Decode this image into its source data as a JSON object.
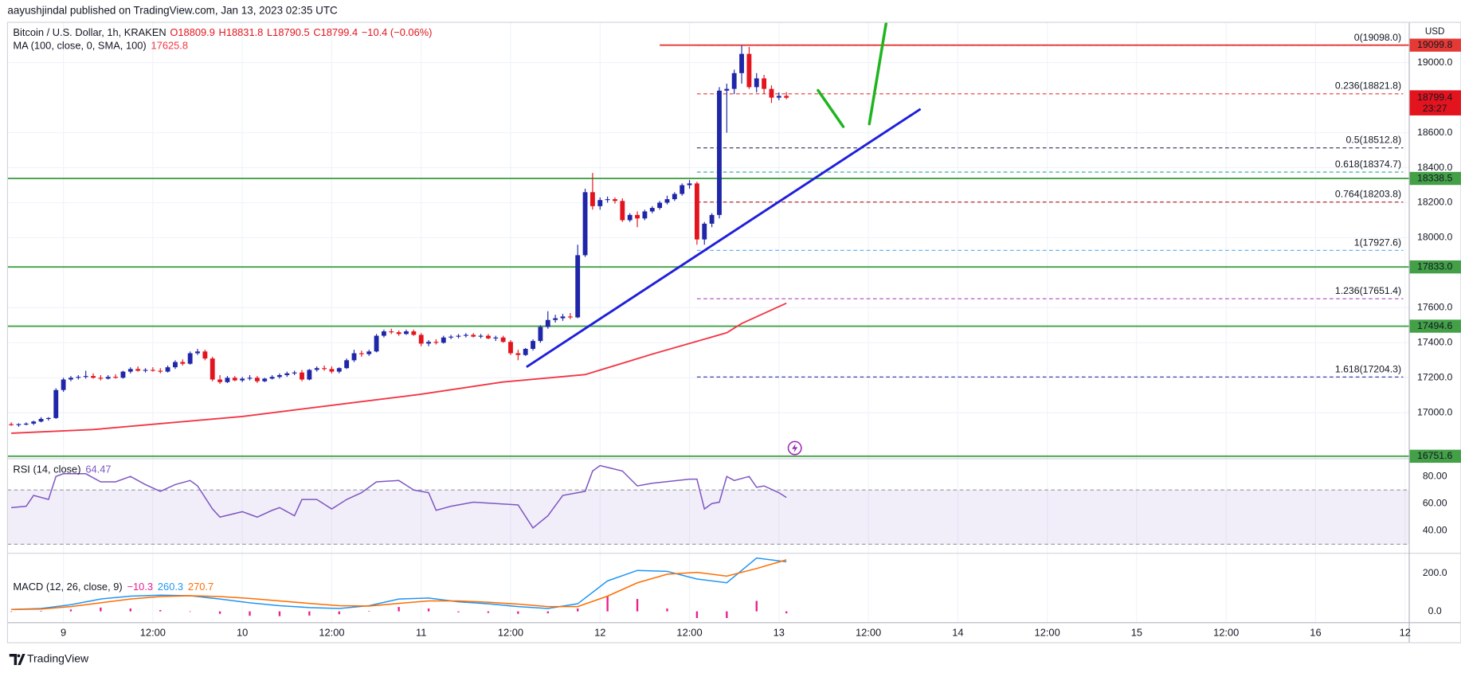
{
  "header": {
    "published": "aayushjindal published on TradingView.com, Jan 13, 2023 02:35 UTC"
  },
  "footer": {
    "brand": "TradingView"
  },
  "chart_data": [
    {
      "type": "candlestick",
      "title": "Bitcoin / U.S. Dollar, 1h, KRAKEN",
      "ohlc_labels": [
        "O18809.9",
        "H18831.8",
        "L18790.5",
        "C18799.4"
      ],
      "change_label": "−10.4 (−0.06%)",
      "currency": "USD",
      "countdown": "23:27",
      "up_color": "#1f26a8",
      "down_color": "#e3141e",
      "open": [
        16935,
        16930,
        16935,
        16938,
        16950,
        16965,
        16970,
        17130,
        17190,
        17200,
        17205,
        17210,
        17200,
        17195,
        17205,
        17200,
        17235,
        17250,
        17240,
        17245,
        17240,
        17235,
        17260,
        17290,
        17280,
        17340,
        17350,
        17310,
        17190,
        17175,
        17200,
        17185,
        17195,
        17200,
        17180,
        17195,
        17205,
        17215,
        17225,
        17230,
        17190,
        17245,
        17255,
        17250,
        17235,
        17255,
        17300,
        17340,
        17335,
        17350,
        17440,
        17465,
        17460,
        17450,
        17465,
        17445,
        17395,
        17405,
        17400,
        17430,
        17435,
        17440,
        17445,
        17435,
        17440,
        17425,
        17430,
        17405,
        17340,
        17330,
        17365,
        17410,
        17490,
        17530,
        17540,
        17550,
        17545,
        17900,
        18260,
        18180,
        18215,
        18220,
        18210,
        18100,
        18130,
        18110,
        18150,
        18170,
        18200,
        18220,
        18250,
        18300,
        18310,
        17990,
        18080,
        18130,
        18840,
        18850,
        18940,
        19050,
        18860,
        18910,
        18850,
        18800,
        18809.9
      ],
      "high": [
        16945,
        16940,
        16945,
        16955,
        16975,
        16975,
        17140,
        17200,
        17210,
        17215,
        17240,
        17225,
        17215,
        17215,
        17220,
        17240,
        17260,
        17265,
        17255,
        17260,
        17255,
        17270,
        17300,
        17305,
        17350,
        17365,
        17360,
        17320,
        17215,
        17210,
        17210,
        17205,
        17215,
        17210,
        17200,
        17215,
        17225,
        17235,
        17240,
        17245,
        17250,
        17265,
        17270,
        17265,
        17260,
        17310,
        17360,
        17355,
        17360,
        17450,
        17475,
        17480,
        17470,
        17475,
        17475,
        17455,
        17415,
        17420,
        17440,
        17445,
        17450,
        17455,
        17455,
        17450,
        17450,
        17440,
        17440,
        17415,
        17360,
        17370,
        17420,
        17500,
        17580,
        17560,
        17565,
        17570,
        17960,
        18280,
        18370,
        18230,
        18235,
        18230,
        18225,
        18140,
        18150,
        18160,
        18180,
        18210,
        18240,
        18260,
        18310,
        18330,
        18320,
        18090,
        18140,
        18860,
        18880,
        18960,
        19098,
        19090,
        18940,
        18930,
        18870,
        18830,
        18831.8
      ],
      "low": [
        16925,
        16920,
        16928,
        16930,
        16945,
        16955,
        16965,
        17120,
        17180,
        17190,
        17195,
        17195,
        17185,
        17190,
        17195,
        17195,
        17225,
        17235,
        17230,
        17235,
        17225,
        17230,
        17250,
        17270,
        17275,
        17330,
        17300,
        17180,
        17165,
        17170,
        17180,
        17175,
        17185,
        17170,
        17175,
        17190,
        17195,
        17205,
        17215,
        17180,
        17185,
        17235,
        17240,
        17225,
        17225,
        17250,
        17290,
        17320,
        17325,
        17345,
        17430,
        17450,
        17440,
        17445,
        17440,
        17380,
        17380,
        17390,
        17395,
        17420,
        17425,
        17430,
        17430,
        17425,
        17420,
        17410,
        17400,
        17330,
        17300,
        17325,
        17355,
        17400,
        17480,
        17515,
        17525,
        17535,
        17540,
        17890,
        18160,
        18160,
        18200,
        18195,
        18090,
        18090,
        18060,
        18100,
        18140,
        18160,
        18190,
        18210,
        18240,
        18280,
        17960,
        17960,
        18060,
        18110,
        18600,
        18820,
        18880,
        18850,
        18830,
        18820,
        18770,
        18785,
        18790.5
      ],
      "close": [
        16930,
        16935,
        16938,
        16950,
        16965,
        16970,
        17130,
        17190,
        17200,
        17205,
        17210,
        17200,
        17195,
        17205,
        17200,
        17235,
        17250,
        17240,
        17245,
        17240,
        17235,
        17260,
        17290,
        17280,
        17340,
        17350,
        17310,
        17190,
        17175,
        17200,
        17185,
        17195,
        17200,
        17180,
        17195,
        17205,
        17215,
        17225,
        17230,
        17190,
        17245,
        17255,
        17250,
        17235,
        17255,
        17300,
        17340,
        17335,
        17350,
        17440,
        17465,
        17460,
        17450,
        17465,
        17445,
        17395,
        17405,
        17400,
        17430,
        17435,
        17440,
        17445,
        17435,
        17440,
        17425,
        17430,
        17405,
        17340,
        17330,
        17365,
        17410,
        17490,
        17530,
        17540,
        17550,
        17545,
        17900,
        18260,
        18180,
        18215,
        18220,
        18210,
        18100,
        18130,
        18110,
        18150,
        18170,
        18200,
        18220,
        18250,
        18300,
        18310,
        17990,
        18080,
        18130,
        18840,
        18850,
        18940,
        19050,
        18860,
        18910,
        18850,
        18800,
        18810,
        18799.4
      ],
      "series": [
        {
          "name": "MA (100, close, 0, SMA, 100)",
          "color": "#f23645",
          "x": [
            0,
            11,
            31,
            45,
            55,
            66,
            77,
            86,
            96,
            98,
            104
          ],
          "values": [
            16883,
            16904,
            16979,
            17053,
            17106,
            17176,
            17218,
            17335,
            17457,
            17510,
            17625.8
          ]
        }
      ],
      "levels": [
        {
          "value": 18338.5,
          "label": "18338.5",
          "color": "#43a047"
        },
        {
          "value": 17833.0,
          "label": "17833.0",
          "color": "#43a047"
        },
        {
          "value": 17494.6,
          "label": "17494.6",
          "color": "#43a047"
        },
        {
          "value": 16751.6,
          "label": "16751.6",
          "color": "#43a047"
        },
        {
          "value": 19099.8,
          "label": "19099.8",
          "color": "#e53935"
        }
      ],
      "fib": [
        {
          "value": 19098.0,
          "label": "0(19098.0)",
          "color": "#787b86"
        },
        {
          "value": 18821.8,
          "label": "0.236(18821.8)",
          "color": "#e53935"
        },
        {
          "value": 18512.8,
          "label": "0.5(18512.8)",
          "color": "#2a2e5c"
        },
        {
          "value": 18374.7,
          "label": "0.618(18374.7)",
          "color": "#26a69a"
        },
        {
          "value": 18203.8,
          "label": "0.764(18203.8)",
          "color": "#b71c1c"
        },
        {
          "value": 17927.6,
          "label": "1(17927.6)",
          "color": "#64b5f6"
        },
        {
          "value": 17651.4,
          "label": "1.236(17651.4)",
          "color": "#ab47bc"
        },
        {
          "value": 17204.3,
          "label": "1.618(17204.3)",
          "color": "#3949ab"
        }
      ],
      "xlim": [
        -0.5,
        187.5
      ],
      "xticks": [
        {
          "value": 7,
          "label": "9"
        },
        {
          "value": 19,
          "label": "12:00"
        },
        {
          "value": 31,
          "label": "10"
        },
        {
          "value": 43,
          "label": "12:00"
        },
        {
          "value": 55,
          "label": "11"
        },
        {
          "value": 67,
          "label": "12:00"
        },
        {
          "value": 79,
          "label": "12"
        },
        {
          "value": 91,
          "label": "12:00"
        },
        {
          "value": 103,
          "label": "13"
        },
        {
          "value": 115,
          "label": "12:00"
        },
        {
          "value": 127,
          "label": "14"
        },
        {
          "value": 139,
          "label": "12:00"
        },
        {
          "value": 151,
          "label": "15"
        },
        {
          "value": 163,
          "label": "12:00"
        },
        {
          "value": 175,
          "label": "16"
        },
        {
          "value": 187,
          "label": "12"
        }
      ],
      "ylim": [
        16740,
        19230
      ],
      "yticks": [
        {
          "value": 19000,
          "label": "19000.0"
        },
        {
          "value": 18600,
          "label": "18600.0"
        },
        {
          "value": 18400,
          "label": "18400.0"
        },
        {
          "value": 18200,
          "label": "18200.0"
        },
        {
          "value": 18000,
          "label": "18000.0"
        },
        {
          "value": 17600,
          "label": "17600.0"
        },
        {
          "value": 17400,
          "label": "17400.0"
        },
        {
          "value": 17200,
          "label": "17200.0"
        },
        {
          "value": 17000,
          "label": "17000.0"
        }
      ],
      "grid": true
    },
    {
      "type": "line",
      "title": "RSI (14, close)",
      "series": [
        {
          "name": "RSI",
          "color": "#7e57c2",
          "x": [
            0,
            2,
            3,
            5,
            6,
            7,
            10,
            12,
            14,
            16,
            18,
            20,
            22,
            24,
            25,
            27,
            28,
            31,
            33,
            35,
            36,
            38,
            39,
            41,
            43,
            45,
            47,
            49,
            52,
            54,
            56,
            57,
            59,
            62,
            65,
            68,
            70,
            72,
            74,
            77,
            78,
            79,
            82,
            84,
            86,
            91,
            92,
            93,
            94,
            95,
            96,
            97,
            99,
            100,
            101,
            103,
            104
          ],
          "values": [
            57,
            58,
            66,
            63,
            80,
            82,
            82,
            76,
            76,
            80,
            74,
            69,
            74,
            77,
            73,
            56,
            50,
            54,
            50,
            55,
            57,
            51,
            63,
            63,
            56,
            63,
            68,
            76,
            77,
            70,
            68,
            55,
            58,
            61,
            60,
            59,
            42,
            51,
            66,
            69,
            84,
            88,
            84,
            73,
            75,
            78,
            78,
            56,
            60,
            61,
            80,
            77,
            80,
            72,
            73,
            68,
            64.47
          ]
        }
      ],
      "band": [
        30,
        70
      ],
      "band_color": "#7e57c2",
      "ylim": [
        24,
        92
      ],
      "yticks": [
        {
          "value": 80,
          "label": "80.00"
        },
        {
          "value": 60,
          "label": "60.00"
        },
        {
          "value": 40,
          "label": "40.00"
        }
      ]
    },
    {
      "type": "macd",
      "title": "MACD (12, 26, close, 9)",
      "series": [
        {
          "name": "Histogram",
          "style": "histogram",
          "color": "#e91e8c",
          "legend_value": "−10.3",
          "x": [
            0,
            4,
            8,
            12,
            16,
            20,
            24,
            28,
            32,
            36,
            40,
            44,
            48,
            52,
            56,
            60,
            64,
            68,
            72,
            76,
            80,
            84,
            88,
            92,
            96,
            100,
            104
          ],
          "values": [
            0,
            3,
            10,
            20,
            15,
            7,
            0,
            -13,
            -23,
            -25,
            -22,
            -15,
            2,
            23,
            15,
            -5,
            -8,
            -13,
            -10,
            15,
            80,
            65,
            15,
            -35,
            -35,
            55,
            -10.3
          ]
        },
        {
          "name": "MACD",
          "style": "line",
          "color": "#2196f3",
          "x": [
            0,
            4,
            8,
            12,
            16,
            20,
            24,
            28,
            32,
            36,
            40,
            44,
            48,
            52,
            56,
            60,
            64,
            68,
            72,
            76,
            80,
            84,
            88,
            92,
            96,
            100,
            104
          ],
          "values": [
            10,
            15,
            35,
            65,
            80,
            85,
            82,
            65,
            45,
            30,
            20,
            15,
            30,
            65,
            70,
            50,
            40,
            25,
            15,
            40,
            160,
            215,
            210,
            170,
            150,
            280,
            260.3
          ]
        },
        {
          "name": "Signal",
          "style": "line",
          "color": "#ff6d00",
          "x": [
            0,
            4,
            8,
            12,
            16,
            20,
            24,
            28,
            32,
            36,
            40,
            44,
            48,
            52,
            56,
            60,
            64,
            68,
            72,
            76,
            80,
            84,
            88,
            92,
            96,
            100,
            104
          ],
          "values": [
            10,
            12,
            25,
            45,
            65,
            78,
            82,
            78,
            68,
            55,
            42,
            30,
            28,
            42,
            55,
            55,
            48,
            38,
            25,
            25,
            80,
            150,
            195,
            205,
            185,
            225,
            270.7
          ]
        }
      ],
      "ylim": [
        -57,
        300
      ],
      "yticks": [
        {
          "value": 200,
          "label": "200.0"
        },
        {
          "value": 0,
          "label": "0.0"
        }
      ]
    }
  ]
}
